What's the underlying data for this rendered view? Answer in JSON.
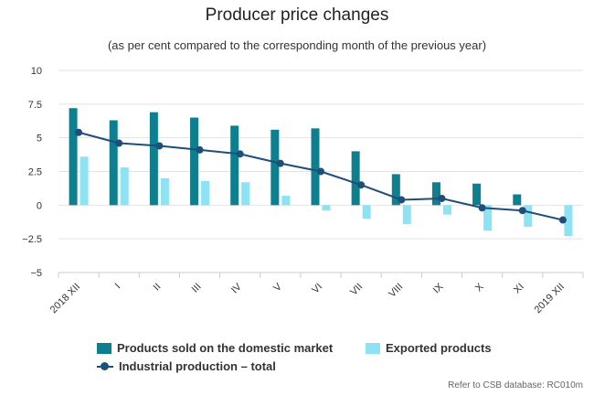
{
  "chart_data": {
    "type": "bar",
    "title": "Producer price changes",
    "subtitle": "(as per cent compared to the corresponding month of the previous year)",
    "categories": [
      "2018 XII",
      "I",
      "II",
      "III",
      "IV",
      "V",
      "VI",
      "VII",
      "VIII",
      "IX",
      "X",
      "XI",
      "2019 XII"
    ],
    "ylim": [
      -5,
      10
    ],
    "yticks": [
      -5,
      -2.5,
      0,
      2.5,
      5,
      7.5,
      10
    ],
    "ytick_labels": [
      "−5",
      "−2.5",
      "0",
      "2.5",
      "5",
      "7.5",
      "10"
    ],
    "grid": true,
    "legend_position": "bottom",
    "series": [
      {
        "name": "Products sold on the domestic market",
        "type": "bar",
        "color": "#0e7f8f",
        "values": [
          7.2,
          6.3,
          6.9,
          6.5,
          5.9,
          5.6,
          5.7,
          4.0,
          2.3,
          1.7,
          1.6,
          0.8,
          null
        ]
      },
      {
        "name": "Exported products",
        "type": "bar",
        "color": "#8de3f3",
        "values": [
          3.6,
          2.8,
          2.0,
          1.8,
          1.7,
          0.7,
          -0.4,
          -1.0,
          -1.4,
          -0.7,
          -1.9,
          -1.6,
          -2.3
        ]
      },
      {
        "name": "Industrial production – total",
        "type": "line",
        "color": "#1f4e79",
        "values": [
          5.4,
          4.6,
          4.4,
          4.1,
          3.8,
          3.1,
          2.5,
          1.5,
          0.4,
          0.5,
          -0.2,
          -0.4,
          -1.1
        ]
      }
    ]
  },
  "credits": "Refer to CSB database: RC010m"
}
